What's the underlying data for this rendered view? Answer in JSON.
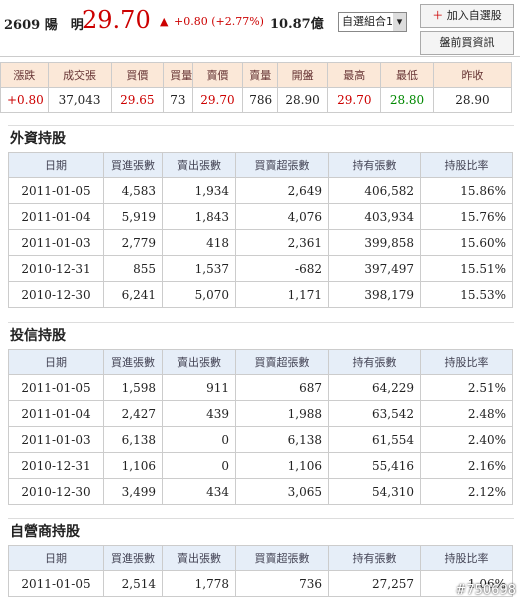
{
  "header": {
    "stock": "2609 陽　明",
    "price": "29.70",
    "arrow": "▲",
    "change": "+0.80 (+2.77%)",
    "amount": "10.87億",
    "select": "自選組合1",
    "buttons": [
      "加入自選股",
      "盤前買資訊"
    ]
  },
  "quote": {
    "columns": [
      "漲跌",
      "成交張",
      "買價",
      "買量",
      "賣價",
      "賣量",
      "開盤",
      "最高",
      "最低",
      "昨收"
    ],
    "values": [
      "+0.80",
      "37,043",
      "29.65",
      "73",
      "29.70",
      "786",
      "28.90",
      "29.70",
      "28.80",
      "28.90"
    ]
  },
  "sections": [
    {
      "title": "外資持股",
      "columns": [
        "日期",
        "買進張數",
        "賣出張數",
        "買賣超張數",
        "持有張數",
        "持股比率"
      ],
      "rows": [
        [
          "2011-01-05",
          "4,583",
          "1,934",
          "2,649",
          "406,582",
          "15.86%"
        ],
        [
          "2011-01-04",
          "5,919",
          "1,843",
          "4,076",
          "403,934",
          "15.76%"
        ],
        [
          "2011-01-03",
          "2,779",
          "418",
          "2,361",
          "399,858",
          "15.60%"
        ],
        [
          "2010-12-31",
          "855",
          "1,537",
          "-682",
          "397,497",
          "15.51%"
        ],
        [
          "2010-12-30",
          "6,241",
          "5,070",
          "1,171",
          "398,179",
          "15.53%"
        ]
      ]
    },
    {
      "title": "投信持股",
      "columns": [
        "日期",
        "買進張數",
        "賣出張數",
        "買賣超張數",
        "持有張數",
        "持股比率"
      ],
      "rows": [
        [
          "2011-01-05",
          "1,598",
          "911",
          "687",
          "64,229",
          "2.51%"
        ],
        [
          "2011-01-04",
          "2,427",
          "439",
          "1,988",
          "63,542",
          "2.48%"
        ],
        [
          "2011-01-03",
          "6,138",
          "0",
          "6,138",
          "61,554",
          "2.40%"
        ],
        [
          "2010-12-31",
          "1,106",
          "0",
          "1,106",
          "55,416",
          "2.16%"
        ],
        [
          "2010-12-30",
          "3,499",
          "434",
          "3,065",
          "54,310",
          "2.12%"
        ]
      ]
    },
    {
      "title": "自營商持股",
      "columns": [
        "日期",
        "買進張數",
        "賣出張數",
        "買賣超張數",
        "持有張數",
        "持股比率"
      ],
      "rows": [
        [
          "2011-01-05",
          "2,514",
          "1,778",
          "736",
          "27,257",
          "1.06%"
        ]
      ]
    }
  ],
  "watermark": "#750698"
}
